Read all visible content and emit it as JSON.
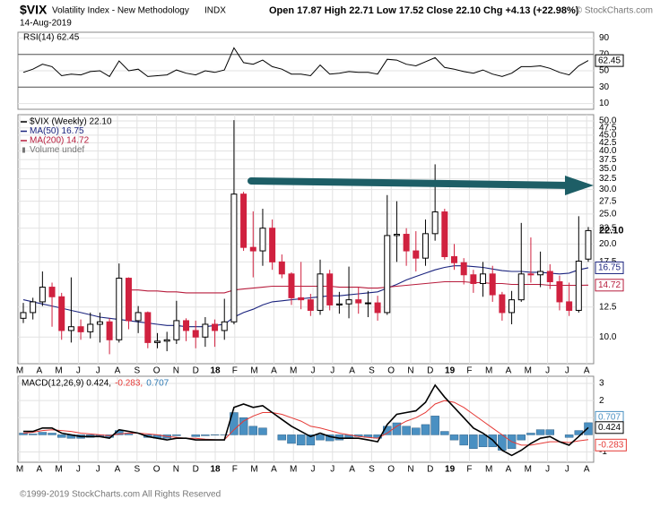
{
  "header": {
    "symbol": "$VIX",
    "name": "Volatility Index - New Methodology",
    "exchange": "INDX",
    "date": "14-Aug-2019",
    "quote": "Open 17.87  High 22.71  Low 17.52  Close 22.10  Chg +4.13 (+22.98%)",
    "brand": "© StockCharts.com"
  },
  "footer": "©1999-2019 StockCharts.com All Rights Reserved",
  "chart_data": [
    {
      "type": "line",
      "legend": "RSI(14) 62.45",
      "ylim": [
        3,
        97
      ],
      "yticks": [
        10,
        30,
        50,
        70,
        90
      ],
      "levels": [
        30,
        70
      ],
      "grid": true,
      "series": [
        {
          "color": "#000000",
          "values": [
            48,
            52,
            58,
            55,
            44,
            46,
            45,
            49,
            50,
            43,
            62,
            50,
            52,
            43,
            44,
            45,
            51,
            47,
            45,
            50,
            48,
            51,
            78,
            60,
            58,
            63,
            55,
            52,
            46,
            46,
            44,
            57,
            46,
            47,
            49,
            48,
            48,
            46,
            64,
            63,
            58,
            56,
            61,
            66,
            54,
            52,
            49,
            47,
            51,
            46,
            43,
            47,
            55,
            55,
            56,
            53,
            48,
            45,
            56,
            62.45
          ]
        }
      ]
    },
    {
      "type": "candlestick",
      "log_scale": true,
      "grid": true,
      "ylim": [
        8.2,
        52.4
      ],
      "yticks": [
        {
          "value": 10,
          "label": "10.0"
        },
        12.5,
        17.5,
        {
          "value": 20,
          "label": "20.0"
        },
        22.5,
        {
          "value": 25,
          "label": "25.0"
        },
        27.5,
        {
          "value": 30,
          "label": "30.0"
        },
        32.5,
        {
          "value": 35,
          "label": "35.0"
        },
        37.5,
        {
          "value": 40,
          "label": "40.0"
        },
        42.5,
        {
          "value": 45,
          "label": "45.0"
        },
        47.5,
        {
          "value": 50,
          "label": "50.0"
        }
      ],
      "x_tick_labels": [
        "M",
        "A",
        "M",
        "J",
        "J",
        "A",
        "S",
        "O",
        "N",
        "D",
        "18",
        "F",
        "M",
        "A",
        "M",
        "J",
        "J",
        "A",
        "S",
        "O",
        "N",
        "D",
        "19",
        "F",
        "M",
        "A",
        "M",
        "J",
        "J",
        "A"
      ],
      "legend": [
        {
          "text": "$VIX (Weekly) 22.10",
          "color": "#000000"
        },
        {
          "text": "MA(50) 16.75",
          "color": "#1a237e"
        },
        {
          "text": "MA(200) 14.72",
          "color": "#b71c3c"
        },
        {
          "text": "Volume undef",
          "color": "#777777"
        }
      ],
      "up_color": "#000000",
      "down_color": "#d0213f",
      "last_close_label": "22.10",
      "open": [
        11.5,
        12.0,
        13.0,
        14.5,
        13.5,
        10.5,
        10.8,
        10.4,
        11.0,
        11.2,
        9.8,
        15.5,
        11.3,
        12.0,
        9.6,
        9.7,
        9.8,
        11.3,
        10.5,
        10.0,
        11.0,
        10.5,
        11.2,
        29.0,
        19.5,
        19.0,
        22.5,
        17.5,
        16.0,
        13.4,
        13.2,
        12.2,
        16.0,
        12.7,
        12.8,
        13.2,
        12.9,
        12.9,
        12.0,
        21.3,
        21.5,
        19.0,
        18.0,
        21.6,
        25.4,
        18.2,
        17.4,
        15.9,
        14.9,
        16.0,
        13.7,
        12.0,
        13.2,
        16.0,
        15.9,
        16.3,
        15.1,
        13.0,
        12.2,
        17.87
      ],
      "high": [
        12.9,
        13.4,
        16.3,
        15.0,
        13.9,
        15.6,
        11.4,
        12.0,
        12.0,
        11.5,
        17.3,
        15.6,
        12.6,
        12.1,
        10.3,
        10.4,
        13.1,
        11.5,
        11.3,
        11.6,
        11.4,
        13.3,
        50.3,
        29.5,
        25.5,
        26.0,
        24.0,
        18.5,
        16.2,
        17.5,
        13.8,
        17.8,
        16.5,
        14.0,
        16.9,
        14.5,
        14.1,
        13.6,
        28.8,
        27.5,
        22.5,
        22.0,
        24.0,
        36.2,
        26.0,
        20.0,
        18.0,
        16.5,
        17.5,
        17.0,
        14.0,
        14.1,
        23.4,
        21.0,
        18.9,
        17.2,
        15.8,
        15.0,
        24.6,
        22.71
      ],
      "low": [
        11.1,
        11.4,
        12.6,
        10.8,
        9.8,
        9.6,
        9.8,
        9.9,
        9.6,
        8.8,
        9.6,
        10.6,
        10.3,
        9.2,
        9.2,
        9.0,
        9.5,
        9.7,
        9.2,
        9.3,
        9.3,
        9.8,
        11.0,
        19.0,
        15.6,
        17.0,
        16.5,
        15.5,
        12.7,
        12.3,
        11.7,
        11.8,
        12.2,
        11.9,
        11.5,
        11.9,
        11.6,
        11.3,
        11.8,
        17.5,
        17.0,
        16.3,
        17.0,
        20.5,
        17.8,
        16.5,
        14.8,
        13.9,
        13.5,
        13.0,
        11.3,
        11.0,
        13.0,
        15.0,
        14.5,
        14.3,
        12.2,
        11.7,
        12.0,
        17.52
      ],
      "close": [
        12.0,
        13.0,
        14.5,
        13.5,
        10.5,
        10.8,
        10.4,
        11.0,
        11.2,
        9.8,
        15.5,
        11.3,
        12.0,
        9.6,
        9.7,
        9.8,
        11.3,
        10.5,
        10.0,
        11.0,
        10.5,
        11.2,
        29.0,
        19.5,
        19.0,
        22.5,
        17.5,
        16.0,
        13.4,
        13.2,
        12.2,
        16.0,
        12.7,
        12.8,
        13.2,
        12.9,
        12.9,
        12.0,
        21.3,
        21.5,
        19.0,
        18.0,
        21.6,
        25.4,
        18.2,
        17.4,
        15.9,
        14.9,
        16.0,
        13.7,
        12.0,
        13.2,
        16.0,
        15.9,
        16.3,
        15.1,
        13.0,
        12.2,
        17.6,
        22.1
      ],
      "overlays": [
        {
          "color": "#1a237e",
          "values": [
            13.2,
            13.0,
            12.8,
            12.6,
            12.4,
            12.2,
            12.0,
            11.8,
            11.6,
            11.5,
            11.4,
            11.3,
            11.2,
            11.1,
            11.0,
            10.9,
            10.9,
            10.8,
            10.8,
            10.8,
            10.9,
            11.0,
            11.6,
            12.0,
            12.3,
            12.7,
            13.0,
            13.1,
            13.2,
            13.3,
            13.4,
            13.5,
            13.6,
            13.6,
            13.7,
            13.8,
            13.9,
            14.0,
            14.4,
            14.8,
            15.3,
            15.7,
            16.1,
            16.5,
            16.8,
            17.0,
            17.0,
            16.9,
            16.8,
            16.6,
            16.4,
            16.3,
            16.3,
            16.2,
            16.2,
            16.1,
            16.0,
            16.1,
            16.5,
            16.75
          ]
        },
        {
          "color": "#b71c3c",
          "values": [
            null,
            null,
            null,
            null,
            null,
            null,
            null,
            null,
            null,
            null,
            null,
            14.2,
            14.2,
            14.1,
            14.1,
            14.0,
            14.0,
            13.9,
            13.9,
            13.9,
            13.9,
            13.9,
            14.2,
            14.3,
            14.4,
            14.5,
            14.6,
            14.6,
            14.6,
            14.6,
            14.6,
            14.6,
            14.6,
            14.5,
            14.5,
            14.5,
            14.4,
            14.4,
            14.5,
            14.6,
            14.7,
            14.8,
            14.9,
            15.0,
            15.1,
            15.1,
            15.1,
            15.0,
            15.0,
            14.9,
            14.9,
            14.8,
            14.8,
            14.8,
            14.8,
            14.7,
            14.7,
            14.7,
            14.7,
            14.72
          ]
        }
      ]
    },
    {
      "type": "macd",
      "grid": true,
      "ylim": [
        -1.6,
        3.42
      ],
      "yticks": [
        -1,
        1,
        2,
        3
      ],
      "x_tick_labels": [
        "M",
        "A",
        "M",
        "J",
        "J",
        "A",
        "S",
        "O",
        "N",
        "D",
        "18",
        "F",
        "M",
        "A",
        "M",
        "J",
        "J",
        "A",
        "S",
        "O",
        "N",
        "D",
        "19",
        "F",
        "M",
        "A",
        "M",
        "J",
        "J",
        "A"
      ],
      "legend": [
        {
          "text": "MACD(12,26,9) 0.424,",
          "color": "#000000"
        },
        {
          "text": "-0.283,",
          "color": "#e53935"
        },
        {
          "text": "0.707",
          "color": "#2f7bb5"
        }
      ],
      "macd_color": "#000000",
      "signal_color": "#e53935",
      "histogram_color": "#4a90c2",
      "macd": [
        0.2,
        0.2,
        0.4,
        0.4,
        0.1,
        0.0,
        -0.1,
        -0.1,
        -0.1,
        -0.2,
        0.3,
        0.2,
        0.1,
        -0.1,
        -0.2,
        -0.3,
        -0.2,
        -0.2,
        -0.3,
        -0.3,
        -0.3,
        -0.3,
        1.6,
        1.8,
        1.6,
        1.7,
        1.3,
        0.9,
        0.5,
        0.2,
        -0.1,
        0.1,
        -0.1,
        -0.2,
        -0.2,
        -0.2,
        -0.3,
        -0.4,
        0.6,
        1.2,
        1.3,
        1.4,
        1.9,
        2.9,
        2.2,
        1.6,
        1.0,
        0.4,
        0.1,
        -0.3,
        -0.9,
        -1.2,
        -0.9,
        -0.5,
        -0.2,
        -0.1,
        -0.4,
        -0.6,
        -0.1,
        0.424
      ],
      "signal": [
        0.1,
        0.15,
        0.25,
        0.3,
        0.25,
        0.2,
        0.1,
        0.05,
        0.0,
        -0.05,
        0.05,
        0.1,
        0.1,
        0.05,
        0.0,
        -0.1,
        -0.15,
        -0.2,
        -0.2,
        -0.25,
        -0.28,
        -0.29,
        0.3,
        0.8,
        1.1,
        1.3,
        1.3,
        1.2,
        1.0,
        0.8,
        0.5,
        0.4,
        0.25,
        0.1,
        0.0,
        -0.1,
        -0.15,
        -0.2,
        0.1,
        0.5,
        0.8,
        1.0,
        1.3,
        1.8,
        2.0,
        1.9,
        1.6,
        1.2,
        0.8,
        0.4,
        0.0,
        -0.4,
        -0.6,
        -0.6,
        -0.5,
        -0.4,
        -0.4,
        -0.45,
        -0.35,
        -0.283
      ],
      "histogram": [
        0.1,
        0.05,
        0.15,
        0.1,
        -0.15,
        -0.2,
        -0.2,
        -0.15,
        -0.1,
        -0.15,
        0.25,
        0.1,
        0.0,
        -0.15,
        -0.2,
        -0.2,
        -0.05,
        0.0,
        -0.1,
        -0.05,
        -0.02,
        -0.01,
        1.3,
        1.0,
        0.5,
        0.4,
        0.0,
        -0.3,
        -0.5,
        -0.6,
        -0.6,
        -0.3,
        -0.35,
        -0.3,
        -0.2,
        -0.1,
        -0.15,
        -0.2,
        0.5,
        0.7,
        0.5,
        0.4,
        0.6,
        1.1,
        0.2,
        -0.3,
        -0.6,
        -0.8,
        -0.7,
        -0.7,
        -0.9,
        -0.8,
        -0.3,
        0.1,
        0.3,
        0.3,
        0.0,
        -0.15,
        0.25,
        0.707
      ]
    }
  ]
}
